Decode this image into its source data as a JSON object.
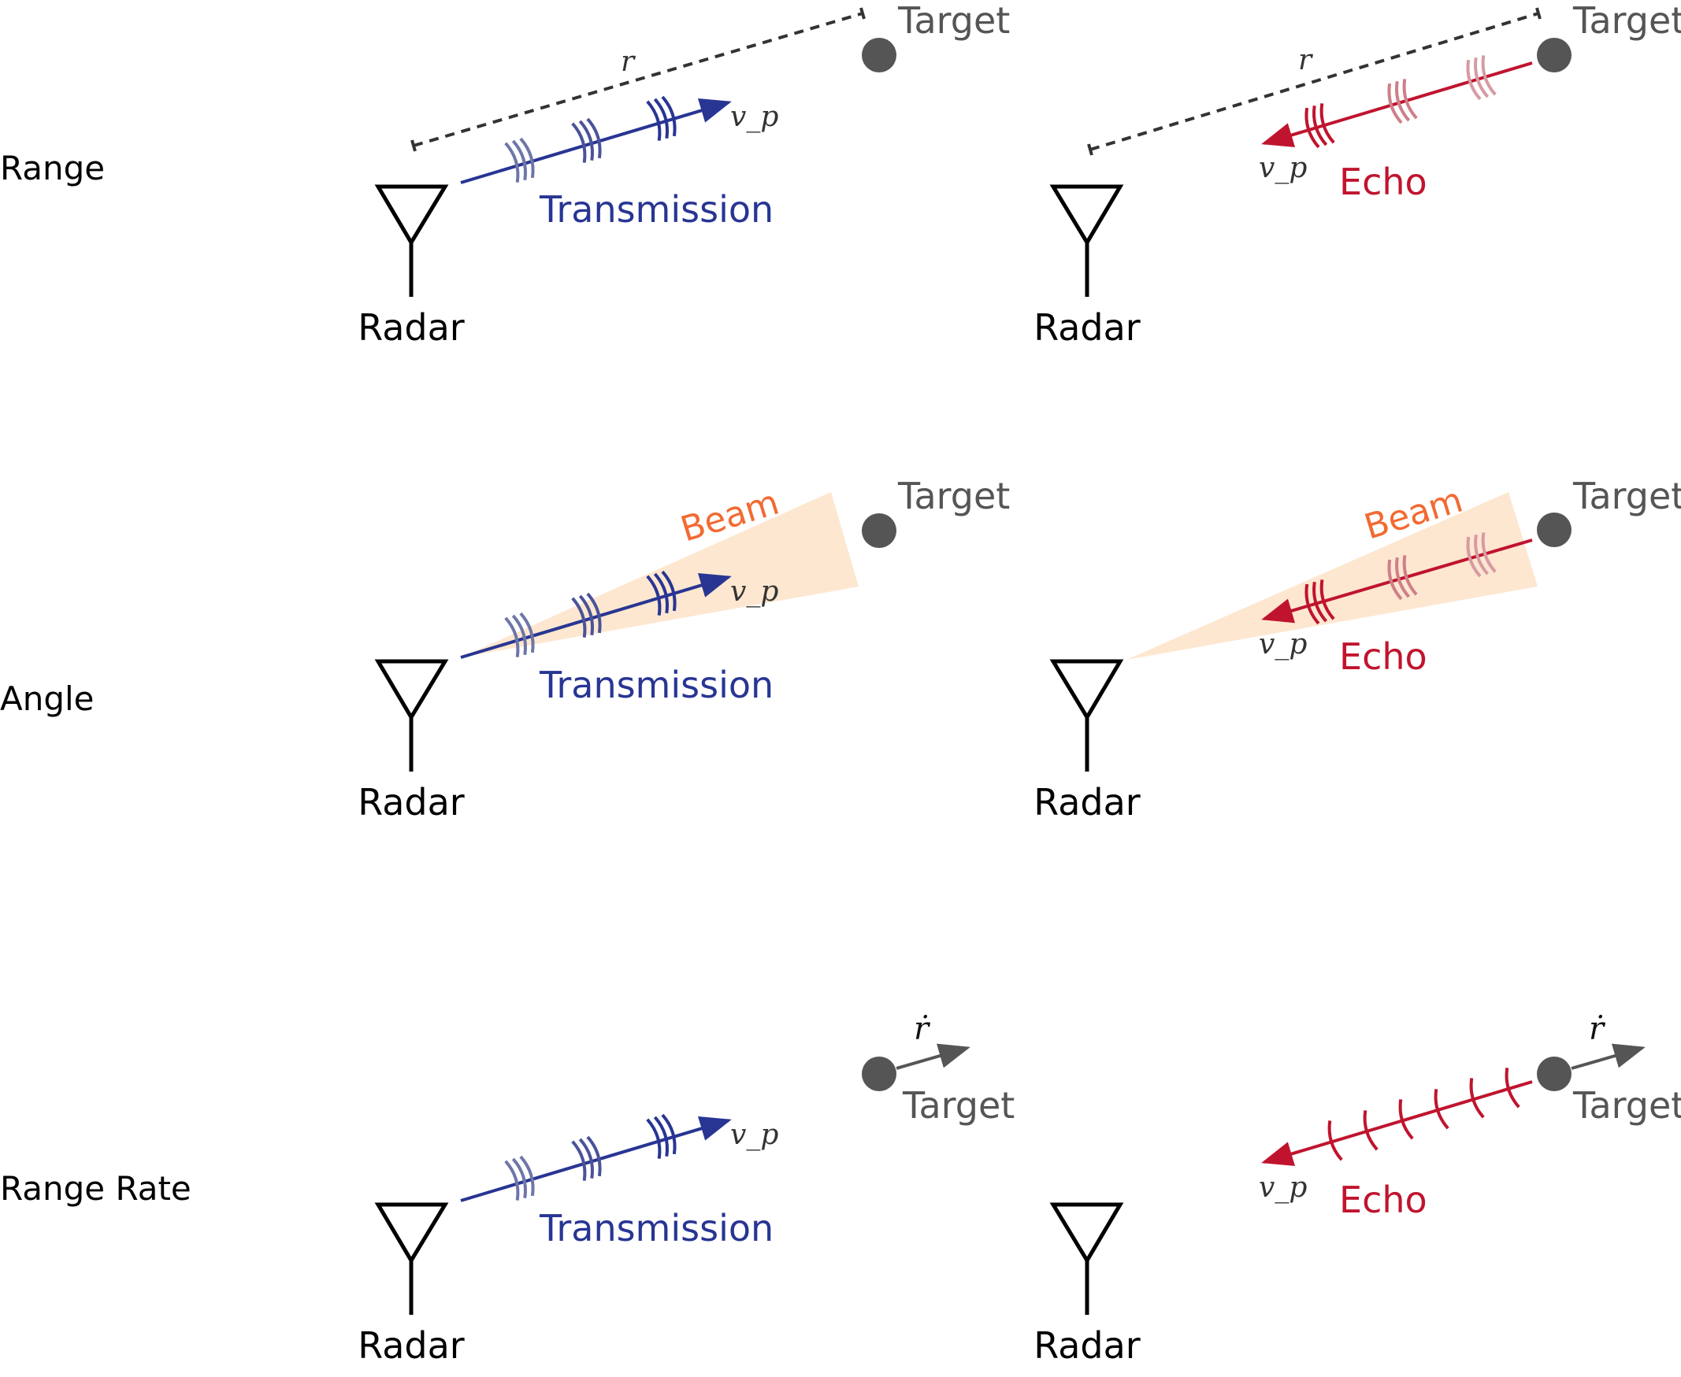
{
  "rows": {
    "range": {
      "label": "Range"
    },
    "angle": {
      "label": "Angle"
    },
    "range_rate": {
      "label": "Range Rate"
    }
  },
  "labels": {
    "radar": "Radar",
    "target": "Target",
    "transmission": "Transmission",
    "echo": "Echo",
    "beam": "Beam",
    "propagation_velocity": "v_p",
    "range_symbol": "r",
    "range_rate_symbol": "ṙ"
  },
  "colors": {
    "transmission": "#283593",
    "echo": "#c0142e",
    "echo_faded": "#cf7f89",
    "beam": "#fde7d0",
    "beam_text": "#f26a32",
    "target": "#555555",
    "antenna": "#000000",
    "dimension": "#333333"
  }
}
